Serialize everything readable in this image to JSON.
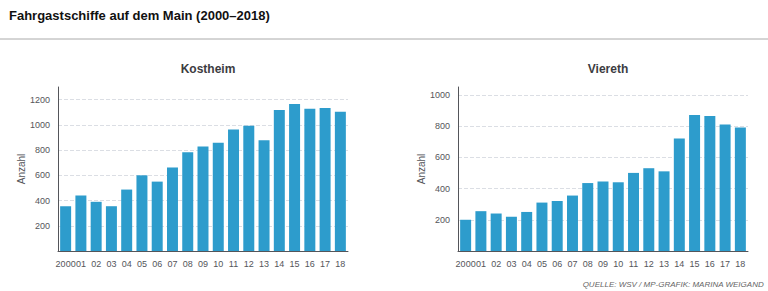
{
  "title": "Fahrgastschiffe auf dem Main (2000–2018)",
  "annotations": [
    "QUELLE: WSV / MP-GRAFIK: MARINA WEIGAND"
  ],
  "chart_data": [
    {
      "type": "bar",
      "title": "Kostheim",
      "categories": [
        "2000",
        "01",
        "02",
        "03",
        "04",
        "05",
        "06",
        "07",
        "08",
        "09",
        "10",
        "11",
        "12",
        "13",
        "14",
        "15",
        "16",
        "17",
        "18"
      ],
      "values": [
        355,
        440,
        390,
        355,
        487,
        600,
        550,
        662,
        783,
        828,
        858,
        963,
        993,
        878,
        1118,
        1165,
        1128,
        1133,
        1103
      ],
      "color": "#2D9CCC",
      "ylabel": "Anzahl",
      "ylim": [
        0,
        1300
      ],
      "yticks": [
        200,
        400,
        600,
        800,
        1000,
        1200
      ],
      "grid": true
    },
    {
      "type": "bar",
      "title": "Viereth",
      "categories": [
        "2000",
        "01",
        "02",
        "03",
        "04",
        "05",
        "06",
        "07",
        "08",
        "09",
        "10",
        "11",
        "12",
        "13",
        "14",
        "15",
        "16",
        "17",
        "18"
      ],
      "values": [
        200,
        255,
        240,
        220,
        250,
        310,
        320,
        355,
        435,
        445,
        440,
        500,
        530,
        510,
        720,
        870,
        865,
        810,
        790
      ],
      "color": "#2D9CCC",
      "ylabel": "Anzahl",
      "ylim": [
        0,
        1050
      ],
      "yticks": [
        200,
        400,
        600,
        800,
        1000
      ],
      "grid": true
    }
  ]
}
